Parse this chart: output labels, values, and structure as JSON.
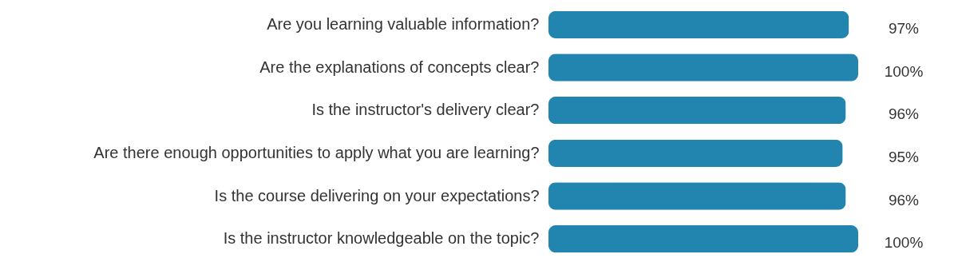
{
  "chart_data": {
    "type": "bar",
    "orientation": "horizontal",
    "categories": [
      "Are you learning valuable information?",
      "Are the explanations of concepts clear?",
      "Is the instructor's delivery clear?",
      "Are there enough opportunities to apply what you are learning?",
      "Is the course delivering on your expectations?",
      "Is the instructor knowledgeable on the topic?"
    ],
    "values": [
      97,
      100,
      96,
      95,
      96,
      100
    ],
    "value_labels": [
      "97%",
      "100%",
      "96%",
      "95%",
      "96%",
      "100%"
    ],
    "color": "#2185b0",
    "tick_labels": "y"
  }
}
